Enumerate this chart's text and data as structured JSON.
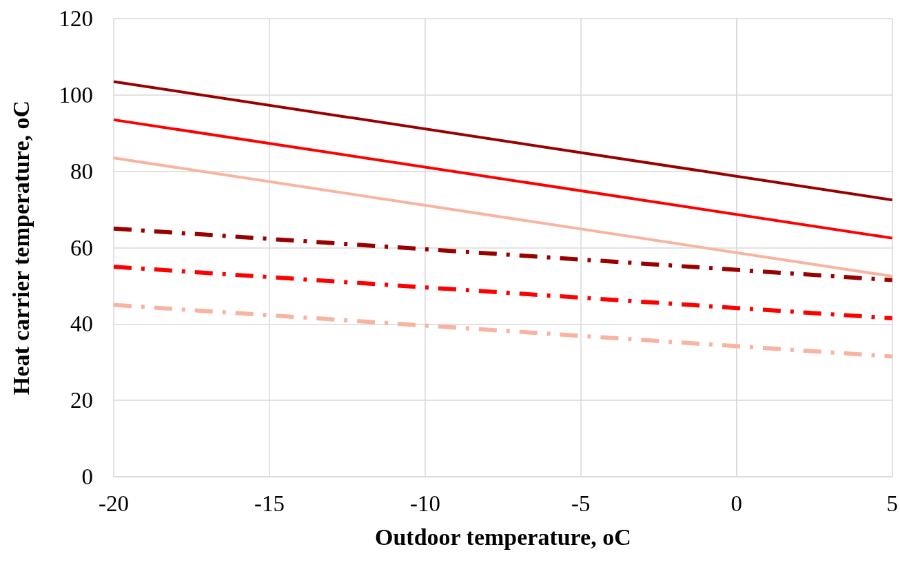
{
  "chart_data": {
    "type": "line",
    "xlabel": "Outdoor temperature, oC",
    "ylabel": "Heat carrier temperature, oC",
    "x": [
      -20,
      5
    ],
    "series": [
      {
        "color": "#990000",
        "values": [
          103.5,
          72.5
        ],
        "line_style": "solid"
      },
      {
        "color": "#ff0000",
        "values": [
          93.5,
          62.5
        ],
        "line_style": "solid"
      },
      {
        "color": "#f8b3a1",
        "values": [
          83.5,
          52.5
        ],
        "line_style": "solid"
      },
      {
        "color": "#990000",
        "values": [
          65,
          51.5
        ],
        "line_style": "dashed"
      },
      {
        "color": "#ff0000",
        "values": [
          55,
          41.5
        ],
        "line_style": "dashed"
      },
      {
        "color": "#f8b3a1",
        "values": [
          45,
          31.5
        ],
        "line_style": "dashed"
      }
    ],
    "xlim": [
      -20,
      5
    ],
    "xticks": [
      -20,
      -15,
      -10,
      -5,
      0,
      5
    ],
    "ylim": [
      0,
      120
    ],
    "yticks": [
      0,
      20,
      40,
      60,
      80,
      100,
      120
    ],
    "grid": true,
    "marker": "none"
  }
}
